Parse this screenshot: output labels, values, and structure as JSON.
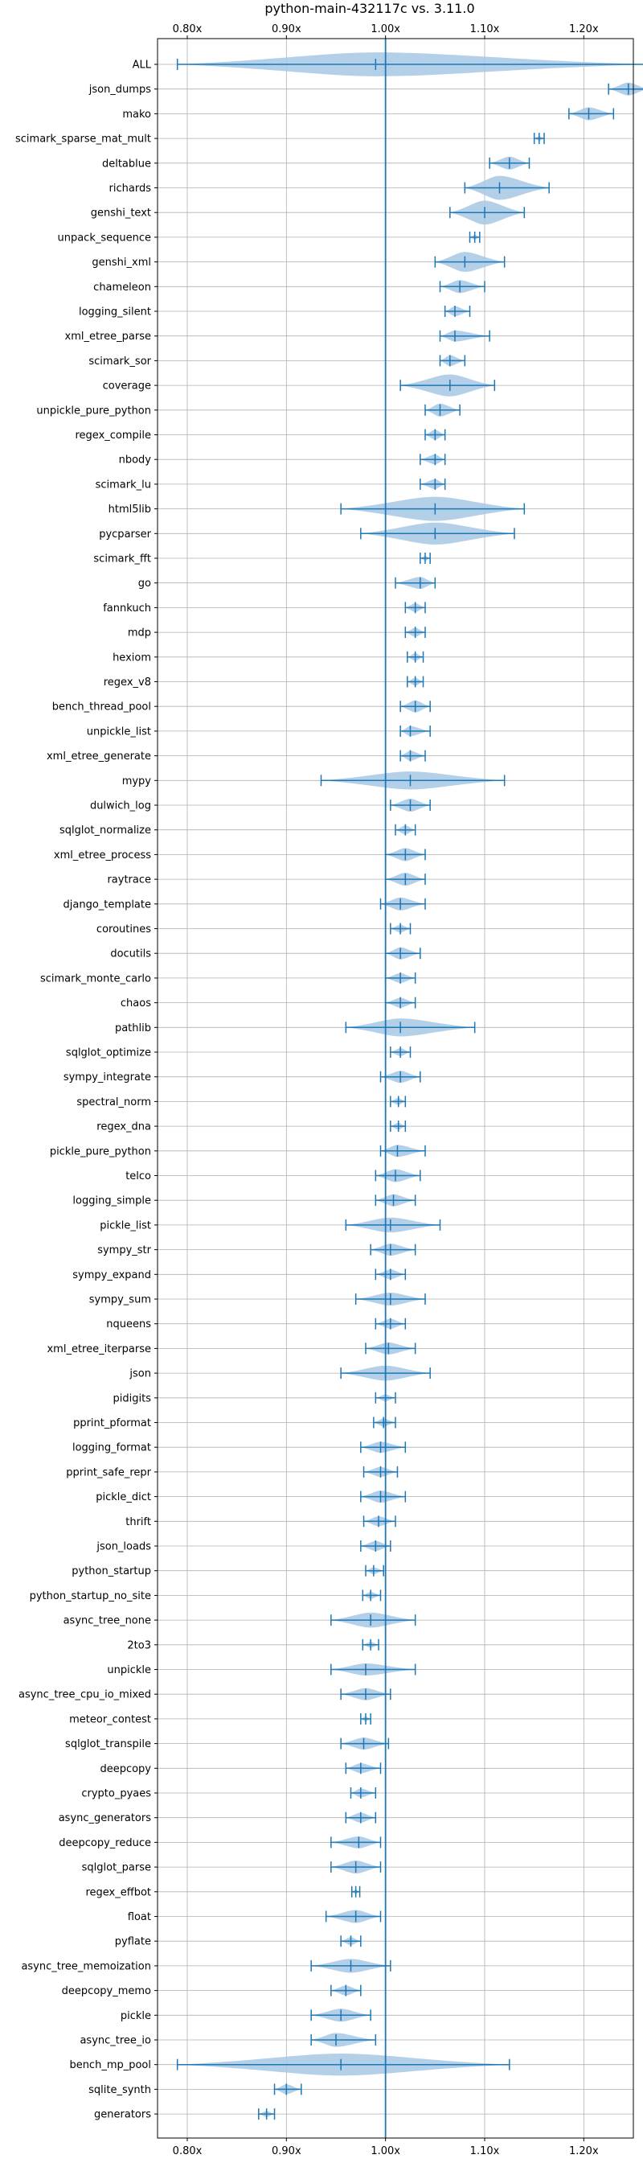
{
  "chart_data": {
    "type": "violin",
    "title": "python-main-432117c vs. 3.11.0",
    "xlabel": "",
    "ylabel": "",
    "xlim": [
      0.77,
      1.25
    ],
    "xticks": [
      0.8,
      0.9,
      1.0,
      1.1,
      1.2
    ],
    "xtick_labels": [
      "0.80x",
      "0.90x",
      "1.00x",
      "1.10x",
      "1.20x"
    ],
    "reference_line": 1.0,
    "grid": true,
    "color": "#1f77b4",
    "fill_color": "#a6c8e4",
    "benchmarks": [
      {
        "name": "ALL",
        "mean": 0.99,
        "min": 0.79,
        "max": 1.265,
        "width": 0.024
      },
      {
        "name": "json_dumps",
        "mean": 1.245,
        "min": 1.225,
        "max": 1.265,
        "width": 0.013
      },
      {
        "name": "mako",
        "mean": 1.205,
        "min": 1.185,
        "max": 1.23,
        "width": 0.013
      },
      {
        "name": "scimark_sparse_mat_mult",
        "mean": 1.155,
        "min": 1.15,
        "max": 1.16,
        "width": 0.005
      },
      {
        "name": "deltablue",
        "mean": 1.125,
        "min": 1.105,
        "max": 1.145,
        "width": 0.013
      },
      {
        "name": "richards",
        "mean": 1.115,
        "min": 1.08,
        "max": 1.165,
        "width": 0.024
      },
      {
        "name": "genshi_text",
        "mean": 1.1,
        "min": 1.065,
        "max": 1.14,
        "width": 0.024
      },
      {
        "name": "unpack_sequence",
        "mean": 1.09,
        "min": 1.085,
        "max": 1.095,
        "width": 0.005
      },
      {
        "name": "genshi_xml",
        "mean": 1.08,
        "min": 1.05,
        "max": 1.12,
        "width": 0.02
      },
      {
        "name": "chameleon",
        "mean": 1.075,
        "min": 1.055,
        "max": 1.1,
        "width": 0.013
      },
      {
        "name": "logging_silent",
        "mean": 1.07,
        "min": 1.06,
        "max": 1.085,
        "width": 0.01
      },
      {
        "name": "xml_etree_parse",
        "mean": 1.07,
        "min": 1.055,
        "max": 1.105,
        "width": 0.011
      },
      {
        "name": "scimark_sor",
        "mean": 1.065,
        "min": 1.055,
        "max": 1.08,
        "width": 0.011
      },
      {
        "name": "coverage",
        "mean": 1.065,
        "min": 1.015,
        "max": 1.11,
        "width": 0.022
      },
      {
        "name": "unpickle_pure_python",
        "mean": 1.055,
        "min": 1.04,
        "max": 1.075,
        "width": 0.013
      },
      {
        "name": "regex_compile",
        "mean": 1.05,
        "min": 1.04,
        "max": 1.06,
        "width": 0.01
      },
      {
        "name": "nbody",
        "mean": 1.05,
        "min": 1.035,
        "max": 1.06,
        "width": 0.01
      },
      {
        "name": "scimark_lu",
        "mean": 1.05,
        "min": 1.035,
        "max": 1.06,
        "width": 0.01
      },
      {
        "name": "html5lib",
        "mean": 1.05,
        "min": 0.955,
        "max": 1.14,
        "width": 0.025
      },
      {
        "name": "pycparser",
        "mean": 1.05,
        "min": 0.975,
        "max": 1.13,
        "width": 0.022
      },
      {
        "name": "scimark_fft",
        "mean": 1.04,
        "min": 1.035,
        "max": 1.045,
        "width": 0.005
      },
      {
        "name": "go",
        "mean": 1.035,
        "min": 1.01,
        "max": 1.05,
        "width": 0.012
      },
      {
        "name": "fannkuch",
        "mean": 1.03,
        "min": 1.02,
        "max": 1.04,
        "width": 0.009
      },
      {
        "name": "mdp",
        "mean": 1.03,
        "min": 1.02,
        "max": 1.04,
        "width": 0.009
      },
      {
        "name": "hexiom",
        "mean": 1.03,
        "min": 1.022,
        "max": 1.038,
        "width": 0.008
      },
      {
        "name": "regex_v8",
        "mean": 1.03,
        "min": 1.022,
        "max": 1.038,
        "width": 0.008
      },
      {
        "name": "bench_thread_pool",
        "mean": 1.03,
        "min": 1.015,
        "max": 1.045,
        "width": 0.012
      },
      {
        "name": "unpickle_list",
        "mean": 1.025,
        "min": 1.015,
        "max": 1.045,
        "width": 0.01
      },
      {
        "name": "xml_etree_generate",
        "mean": 1.025,
        "min": 1.015,
        "max": 1.04,
        "width": 0.01
      },
      {
        "name": "mypy",
        "mean": 1.025,
        "min": 0.935,
        "max": 1.12,
        "width": 0.018
      },
      {
        "name": "dulwich_log",
        "mean": 1.025,
        "min": 1.005,
        "max": 1.045,
        "width": 0.013
      },
      {
        "name": "sqlglot_normalize",
        "mean": 1.02,
        "min": 1.01,
        "max": 1.03,
        "width": 0.009
      },
      {
        "name": "xml_etree_process",
        "mean": 1.02,
        "min": 1.0,
        "max": 1.04,
        "width": 0.013
      },
      {
        "name": "raytrace",
        "mean": 1.02,
        "min": 1.0,
        "max": 1.04,
        "width": 0.013
      },
      {
        "name": "django_template",
        "mean": 1.015,
        "min": 0.995,
        "max": 1.04,
        "width": 0.013
      },
      {
        "name": "coroutines",
        "mean": 1.015,
        "min": 1.005,
        "max": 1.025,
        "width": 0.008
      },
      {
        "name": "docutils",
        "mean": 1.015,
        "min": 1.0,
        "max": 1.035,
        "width": 0.012
      },
      {
        "name": "scimark_monte_carlo",
        "mean": 1.015,
        "min": 1.0,
        "max": 1.03,
        "width": 0.01
      },
      {
        "name": "chaos",
        "mean": 1.015,
        "min": 1.0,
        "max": 1.03,
        "width": 0.01
      },
      {
        "name": "pathlib",
        "mean": 1.015,
        "min": 0.96,
        "max": 1.09,
        "width": 0.018
      },
      {
        "name": "sqlglot_optimize",
        "mean": 1.015,
        "min": 1.005,
        "max": 1.025,
        "width": 0.008
      },
      {
        "name": "sympy_integrate",
        "mean": 1.015,
        "min": 0.995,
        "max": 1.035,
        "width": 0.012
      },
      {
        "name": "spectral_norm",
        "mean": 1.013,
        "min": 1.005,
        "max": 1.02,
        "width": 0.007
      },
      {
        "name": "regex_dna",
        "mean": 1.013,
        "min": 1.005,
        "max": 1.02,
        "width": 0.007
      },
      {
        "name": "pickle_pure_python",
        "mean": 1.012,
        "min": 0.995,
        "max": 1.04,
        "width": 0.012
      },
      {
        "name": "telco",
        "mean": 1.01,
        "min": 0.99,
        "max": 1.035,
        "width": 0.013
      },
      {
        "name": "logging_simple",
        "mean": 1.008,
        "min": 0.99,
        "max": 1.03,
        "width": 0.012
      },
      {
        "name": "pickle_list",
        "mean": 1.005,
        "min": 0.96,
        "max": 1.055,
        "width": 0.015
      },
      {
        "name": "sympy_str",
        "mean": 1.005,
        "min": 0.985,
        "max": 1.03,
        "width": 0.012
      },
      {
        "name": "sympy_expand",
        "mean": 1.005,
        "min": 0.99,
        "max": 1.02,
        "width": 0.01
      },
      {
        "name": "sympy_sum",
        "mean": 1.005,
        "min": 0.97,
        "max": 1.04,
        "width": 0.013
      },
      {
        "name": "nqueens",
        "mean": 1.005,
        "min": 0.99,
        "max": 1.02,
        "width": 0.01
      },
      {
        "name": "xml_etree_iterparse",
        "mean": 1.003,
        "min": 0.98,
        "max": 1.03,
        "width": 0.012
      },
      {
        "name": "json",
        "mean": 1.0,
        "min": 0.955,
        "max": 1.045,
        "width": 0.015
      },
      {
        "name": "pidigits",
        "mean": 1.0,
        "min": 0.99,
        "max": 1.01,
        "width": 0.007
      },
      {
        "name": "pprint_pformat",
        "mean": 0.998,
        "min": 0.988,
        "max": 1.01,
        "width": 0.008
      },
      {
        "name": "logging_format",
        "mean": 0.995,
        "min": 0.975,
        "max": 1.02,
        "width": 0.011
      },
      {
        "name": "pprint_safe_repr",
        "mean": 0.995,
        "min": 0.978,
        "max": 1.012,
        "width": 0.01
      },
      {
        "name": "pickle_dict",
        "mean": 0.995,
        "min": 0.975,
        "max": 1.02,
        "width": 0.012
      },
      {
        "name": "thrift",
        "mean": 0.993,
        "min": 0.978,
        "max": 1.01,
        "width": 0.01
      },
      {
        "name": "json_loads",
        "mean": 0.99,
        "min": 0.975,
        "max": 1.005,
        "width": 0.01
      },
      {
        "name": "python_startup",
        "mean": 0.988,
        "min": 0.98,
        "max": 0.998,
        "width": 0.007
      },
      {
        "name": "python_startup_no_site",
        "mean": 0.985,
        "min": 0.977,
        "max": 0.995,
        "width": 0.007
      },
      {
        "name": "async_tree_none",
        "mean": 0.985,
        "min": 0.945,
        "max": 1.03,
        "width": 0.015
      },
      {
        "name": "2to3",
        "mean": 0.985,
        "min": 0.977,
        "max": 0.993,
        "width": 0.006
      },
      {
        "name": "unpickle",
        "mean": 0.98,
        "min": 0.945,
        "max": 1.03,
        "width": 0.012
      },
      {
        "name": "async_tree_cpu_io_mixed",
        "mean": 0.98,
        "min": 0.955,
        "max": 1.005,
        "width": 0.012
      },
      {
        "name": "meteor_contest",
        "mean": 0.98,
        "min": 0.975,
        "max": 0.985,
        "width": 0.005
      },
      {
        "name": "sqlglot_transpile",
        "mean": 0.978,
        "min": 0.955,
        "max": 1.003,
        "width": 0.012
      },
      {
        "name": "deepcopy",
        "mean": 0.975,
        "min": 0.96,
        "max": 0.995,
        "width": 0.01
      },
      {
        "name": "crypto_pyaes",
        "mean": 0.975,
        "min": 0.965,
        "max": 0.99,
        "width": 0.009
      },
      {
        "name": "async_generators",
        "mean": 0.975,
        "min": 0.96,
        "max": 0.99,
        "width": 0.01
      },
      {
        "name": "deepcopy_reduce",
        "mean": 0.973,
        "min": 0.945,
        "max": 0.995,
        "width": 0.012
      },
      {
        "name": "sqlglot_parse",
        "mean": 0.97,
        "min": 0.945,
        "max": 0.995,
        "width": 0.013
      },
      {
        "name": "regex_effbot",
        "mean": 0.97,
        "min": 0.966,
        "max": 0.974,
        "width": 0.004
      },
      {
        "name": "float",
        "mean": 0.97,
        "min": 0.94,
        "max": 0.995,
        "width": 0.013
      },
      {
        "name": "pyflate",
        "mean": 0.965,
        "min": 0.955,
        "max": 0.975,
        "width": 0.008
      },
      {
        "name": "async_tree_memoization",
        "mean": 0.965,
        "min": 0.925,
        "max": 1.005,
        "width": 0.014
      },
      {
        "name": "deepcopy_memo",
        "mean": 0.96,
        "min": 0.945,
        "max": 0.975,
        "width": 0.01
      },
      {
        "name": "pickle",
        "mean": 0.955,
        "min": 0.925,
        "max": 0.985,
        "width": 0.013
      },
      {
        "name": "async_tree_io",
        "mean": 0.95,
        "min": 0.925,
        "max": 0.99,
        "width": 0.014
      },
      {
        "name": "bench_mp_pool",
        "mean": 0.955,
        "min": 0.79,
        "max": 1.125,
        "width": 0.022
      },
      {
        "name": "sqlite_synth",
        "mean": 0.9,
        "min": 0.888,
        "max": 0.915,
        "width": 0.01
      },
      {
        "name": "generators",
        "mean": 0.88,
        "min": 0.872,
        "max": 0.888,
        "width": 0.006
      }
    ]
  }
}
